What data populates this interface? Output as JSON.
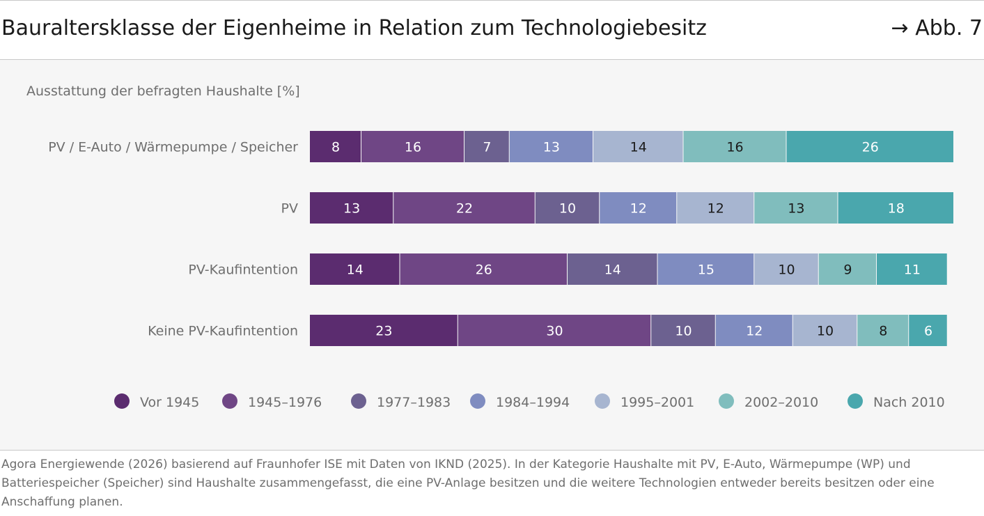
{
  "header": {
    "title": "Bauraltersklasse der Eigenheime in Relation zum Technologiebesitz",
    "figure_ref": "→ Abb. 7"
  },
  "chart_data": {
    "type": "bar",
    "orientation": "horizontal",
    "stacked": true,
    "title": "Bauraltersklasse der Eigenheime in Relation zum Technologiebesitz",
    "subtitle": "Ausstattung der befragten Haushalte [%]",
    "categories": [
      "PV / E-Auto / Wärmepumpe / Speicher",
      "PV",
      "PV-Kaufintention",
      "Keine PV-Kaufintention"
    ],
    "series": [
      {
        "name": "Vor 1945",
        "color": "#5b2c6f",
        "values": [
          8,
          13,
          14,
          23
        ]
      },
      {
        "name": "1945–1976",
        "color": "#6f4685",
        "values": [
          16,
          22,
          26,
          30
        ]
      },
      {
        "name": "1977–1983",
        "color": "#6c6190",
        "values": [
          7,
          10,
          14,
          10
        ]
      },
      {
        "name": "1984–1994",
        "color": "#7f8cc0",
        "values": [
          13,
          12,
          15,
          12
        ]
      },
      {
        "name": "1995–2001",
        "color": "#a7b5d0",
        "values": [
          14,
          12,
          10,
          10
        ]
      },
      {
        "name": "2002–2010",
        "color": "#80bdbd",
        "values": [
          16,
          13,
          9,
          8
        ]
      },
      {
        "name": "Nach 2010",
        "color": "#4aa7ad",
        "values": [
          26,
          18,
          11,
          6
        ]
      }
    ],
    "label_colors": [
      "#ffffff",
      "#ffffff",
      "#ffffff",
      "#ffffff",
      "#1a1a1a",
      "#1a1a1a",
      "#ffffff"
    ],
    "legend_position": "bottom",
    "grid": false
  },
  "source_text": "Agora Energiewende (2026) basierend auf Fraunhofer ISE mit Daten von IKND (2025). In der Kategorie Haushalte mit PV, E-Auto, Wärmepumpe (WP) und Batteriespeicher (Speicher) sind Haushalte zusammengefasst, die eine PV-Anlage besitzen und die weitere Technologien entweder bereits besitzen oder eine Anschaffung planen."
}
